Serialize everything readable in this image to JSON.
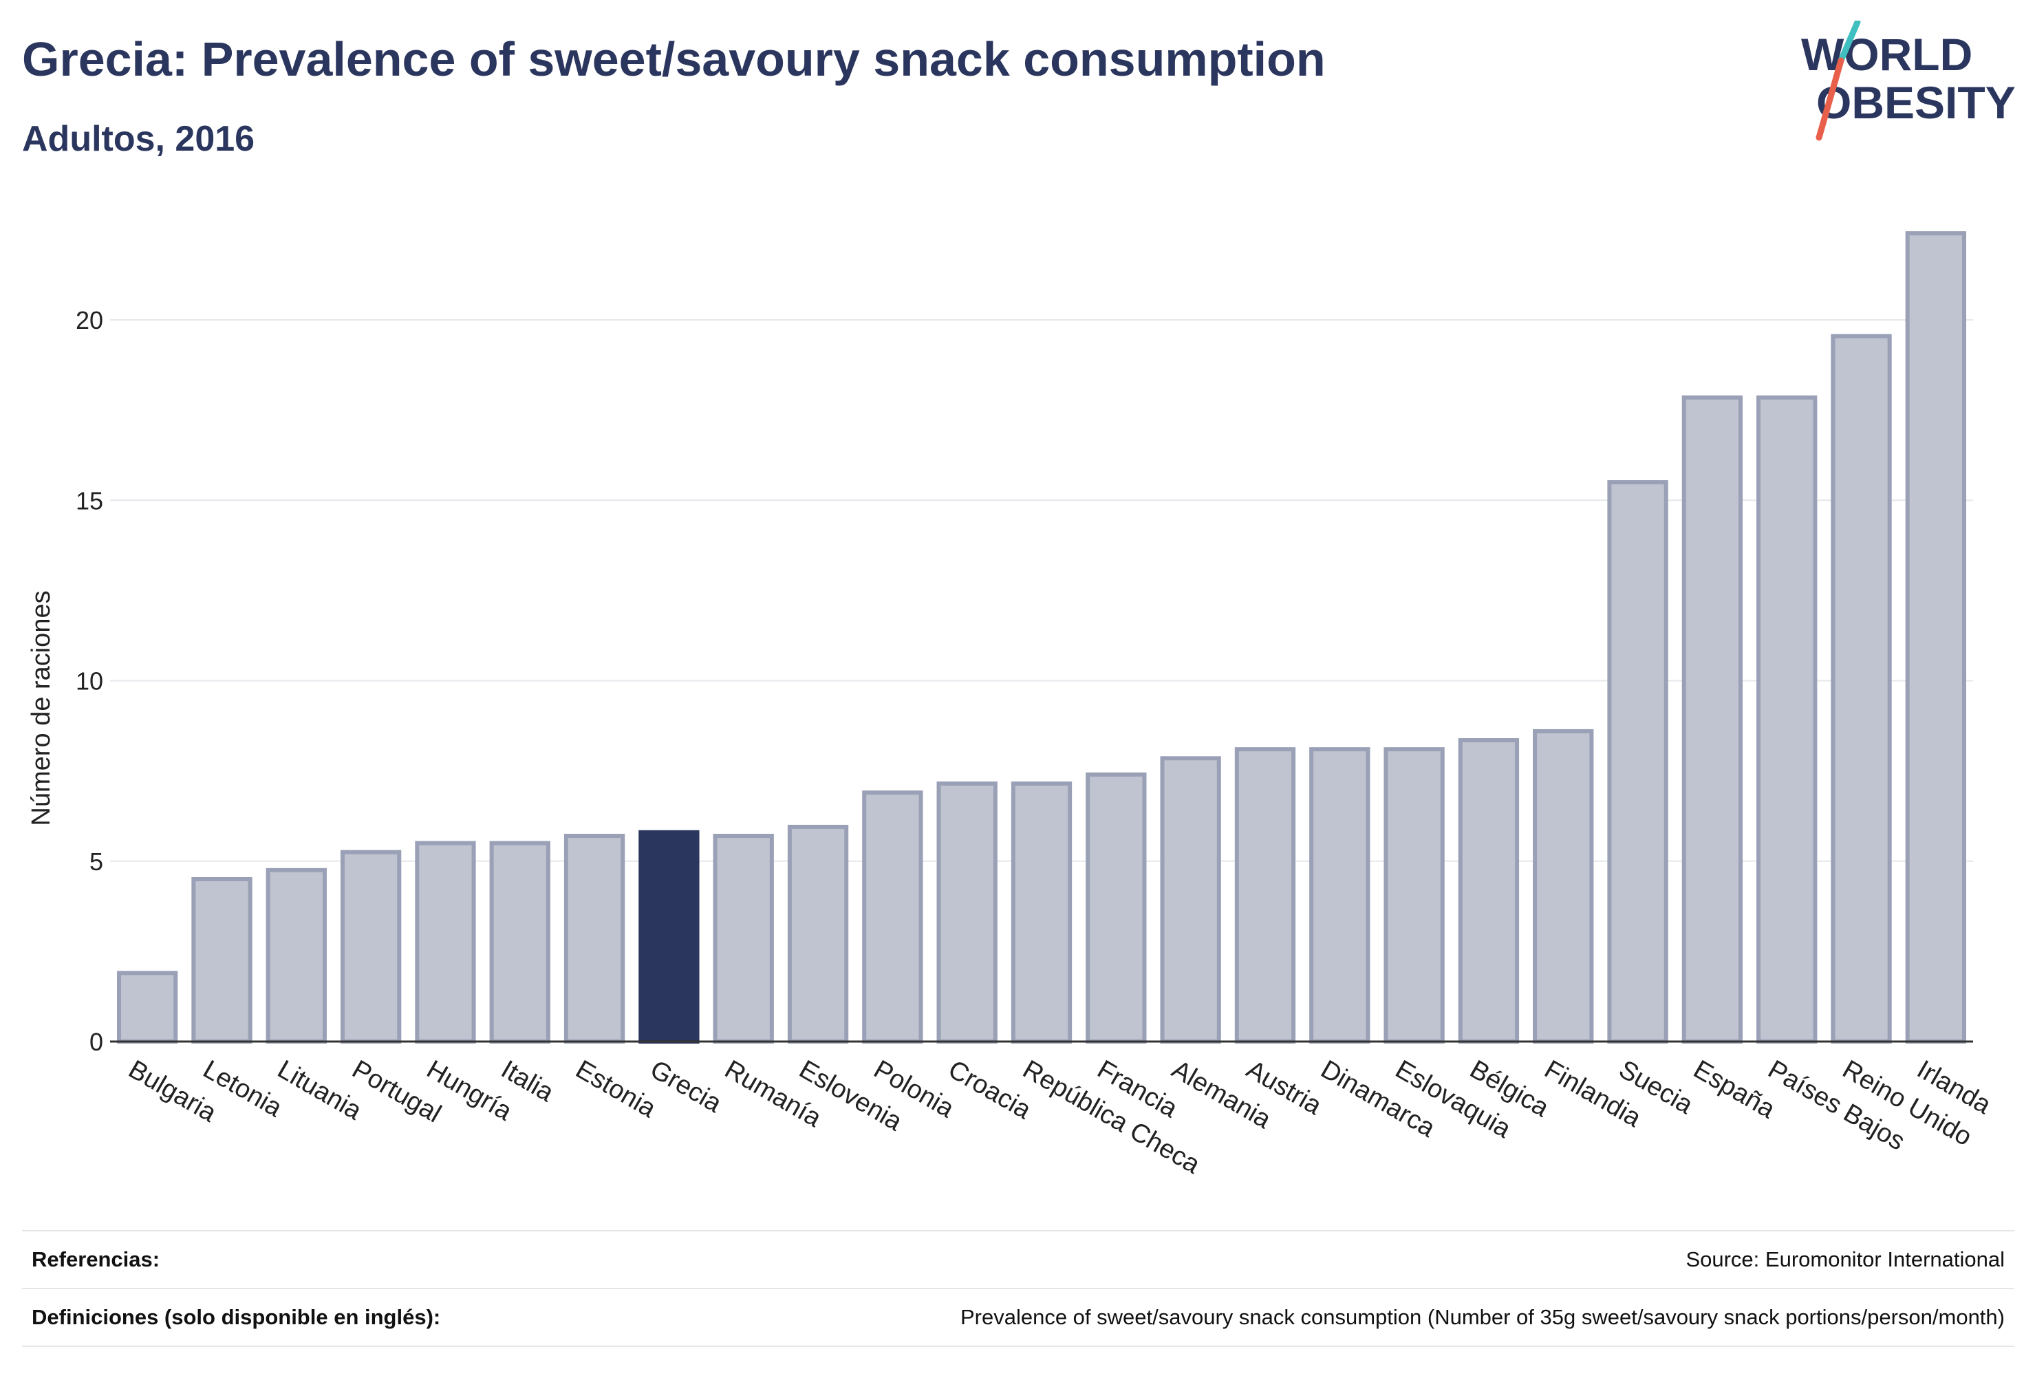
{
  "header": {
    "title": "Grecia: Prevalence of sweet/savoury snack consumption",
    "subtitle": "Adultos, 2016"
  },
  "logo": {
    "line1": "WORLD",
    "line2": "OBESITY",
    "accent_colors": [
      "#3fbfbf",
      "#e8604c"
    ]
  },
  "chart_data": {
    "type": "bar",
    "title": "Grecia: Prevalence of sweet/savoury snack consumption",
    "subtitle": "Adultos, 2016",
    "xlabel": "",
    "ylabel": "Número de raciones",
    "ylim": [
      0,
      23
    ],
    "yticks": [
      0,
      5,
      10,
      15,
      20
    ],
    "grid": true,
    "highlight": "Grecia",
    "colors": {
      "bar": "#c0c3d0",
      "bar_border": "#9aa0b6",
      "highlight": "#2b365e"
    },
    "categories": [
      "Bulgaria",
      "Letonia",
      "Lituania",
      "Portugal",
      "Hungría",
      "Italia",
      "Estonia",
      "Grecia",
      "Rumanía",
      "Eslovenia",
      "Polonia",
      "Croacia",
      "República Checa",
      "Francia",
      "Alemania",
      "Austria",
      "Dinamarca",
      "Eslovaquia",
      "Bélgica",
      "Finlandia",
      "Suecia",
      "España",
      "Países Bajos",
      "Reino Unido",
      "Irlanda"
    ],
    "values": [
      1.9,
      4.5,
      4.75,
      5.25,
      5.5,
      5.5,
      5.7,
      5.8,
      5.7,
      5.95,
      6.9,
      7.15,
      7.15,
      7.4,
      7.85,
      8.1,
      8.1,
      8.1,
      8.35,
      8.6,
      15.5,
      17.85,
      17.85,
      19.55,
      22.4
    ]
  },
  "footer": {
    "references_label": "Referencias:",
    "references_value": "Source: Euromonitor International",
    "definitions_label": "Definiciones (solo disponible en inglés):",
    "definitions_value": "Prevalence of sweet/savoury snack consumption (Number of 35g sweet/savoury snack portions/person/month)"
  }
}
